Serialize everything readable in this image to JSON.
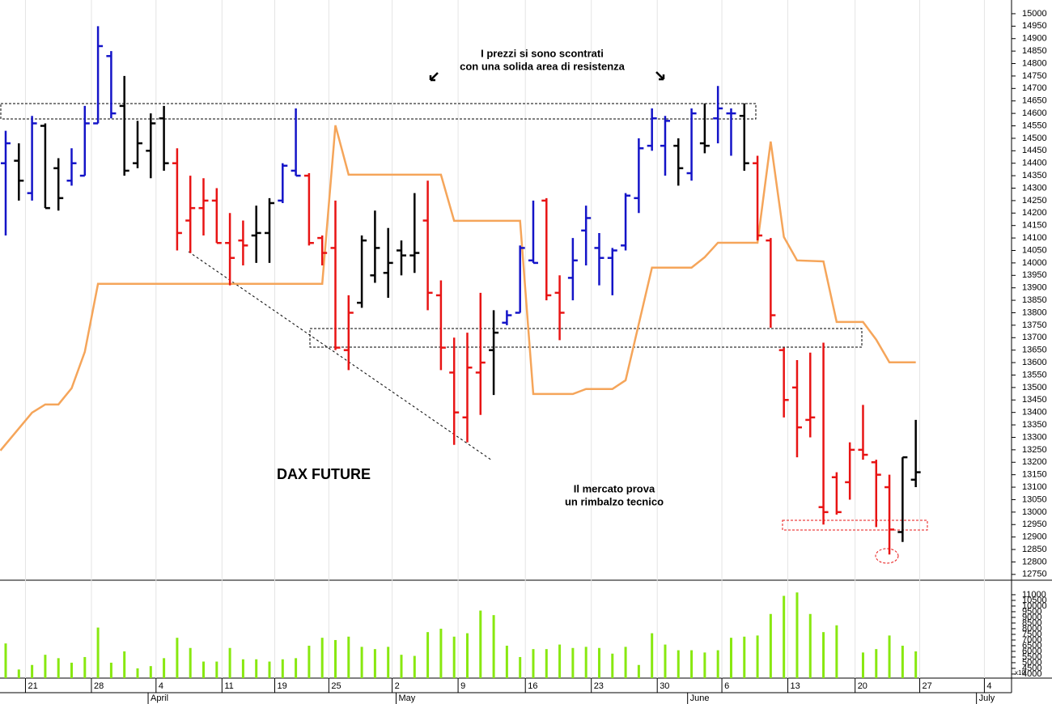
{
  "chart_data": {
    "type": "ohlc",
    "title": "DAX FUTURE",
    "annotations": [
      "I prezzi si sono scontrati",
      "con una solida area di resistenza",
      "Il mercato prova",
      "un rimbalzo tecnico"
    ],
    "volume_unit_label": "x10",
    "xlim": [
      -0.43,
      76.26
    ],
    "xticks": [
      {
        "value": 1.5,
        "label": "21"
      },
      {
        "value": 6.5,
        "label": "28"
      },
      {
        "value": 11.4,
        "label": "4"
      },
      {
        "value": 16.4,
        "label": "11"
      },
      {
        "value": 20.4,
        "label": "19"
      },
      {
        "value": 24.5,
        "label": "25"
      },
      {
        "value": 29.3,
        "label": "2"
      },
      {
        "value": 34.3,
        "label": "9"
      },
      {
        "value": 39.4,
        "label": "16"
      },
      {
        "value": 44.4,
        "label": "23"
      },
      {
        "value": 49.4,
        "label": "30"
      },
      {
        "value": 54.3,
        "label": "6"
      },
      {
        "value": 59.3,
        "label": "13"
      },
      {
        "value": 64.4,
        "label": "20"
      },
      {
        "value": 69.3,
        "label": "27"
      },
      {
        "value": 74.2,
        "label": "4"
      }
    ],
    "month_ticks": [
      {
        "value": 10.8,
        "label": "April"
      },
      {
        "value": 29.6,
        "label": "May"
      },
      {
        "value": 51.7,
        "label": "June"
      },
      {
        "value": 73.6,
        "label": "July"
      }
    ],
    "ylim": [
      12730,
      15055
    ],
    "yticks": [
      12750,
      12800,
      12850,
      12900,
      12950,
      13000,
      13050,
      13100,
      13150,
      13200,
      13250,
      13300,
      13350,
      13400,
      13450,
      13500,
      13550,
      13600,
      13650,
      13700,
      13750,
      13800,
      13850,
      13900,
      13950,
      14000,
      14050,
      14100,
      14150,
      14200,
      14250,
      14300,
      14350,
      14400,
      14450,
      14500,
      14550,
      14600,
      14650,
      14700,
      14750,
      14800,
      14850,
      14900,
      14950,
      15000
    ],
    "bars": {
      "x": [
        0,
        1,
        2,
        3,
        4,
        5,
        6,
        7,
        8,
        9,
        10,
        11,
        12,
        13,
        14,
        15,
        16,
        17,
        18,
        19,
        20,
        21,
        22,
        23,
        24,
        25,
        26,
        27,
        28,
        29,
        30,
        31,
        32,
        33,
        34,
        35,
        36,
        37,
        38,
        39,
        40,
        41,
        42,
        43,
        44,
        45,
        46,
        47,
        48,
        49,
        50,
        51,
        52,
        53,
        54,
        55,
        56,
        57,
        58,
        59,
        60,
        61,
        62,
        63,
        64,
        65,
        66,
        67,
        68,
        69
      ],
      "open": [
        14400,
        14410,
        14280,
        14550,
        14380,
        14330,
        14350,
        14560,
        14830,
        14630,
        14400,
        14450,
        14580,
        14400,
        14170,
        14220,
        14250,
        14080,
        14090,
        14110,
        14120,
        14250,
        14370,
        14350,
        14100,
        14060,
        13650,
        13840,
        13950,
        13960,
        14050,
        14030,
        14170,
        13870,
        13560,
        13380,
        13560,
        13650,
        13760,
        13800,
        14010,
        14250,
        13880,
        13940,
        14130,
        14060,
        14020,
        14070,
        14260,
        14470,
        14470,
        14470,
        14360,
        14480,
        14580,
        14600,
        14590,
        14400,
        14090,
        13650,
        13500,
        13370,
        13020,
        13140,
        13120,
        13250,
        13200,
        13100,
        12920,
        13130
      ],
      "high": [
        14530,
        14480,
        14590,
        14560,
        14420,
        14460,
        14630,
        14950,
        14850,
        14750,
        14570,
        14600,
        14630,
        14460,
        14350,
        14340,
        14300,
        14200,
        14170,
        14230,
        14260,
        14400,
        14620,
        14360,
        14110,
        14250,
        13870,
        14110,
        14210,
        14140,
        14090,
        14280,
        14330,
        13930,
        13700,
        13720,
        13880,
        13810,
        13810,
        14070,
        14250,
        14260,
        13950,
        14100,
        14230,
        14120,
        14060,
        14280,
        14500,
        14620,
        14590,
        14500,
        14620,
        14640,
        14710,
        14620,
        14640,
        14430,
        14100,
        13660,
        13610,
        13640,
        13680,
        13160,
        13280,
        13430,
        13210,
        13150,
        13220,
        13370
      ],
      "low": [
        14110,
        14250,
        14250,
        14220,
        14210,
        14310,
        14350,
        14560,
        14580,
        14350,
        14380,
        14340,
        14370,
        14050,
        14040,
        14110,
        14080,
        13910,
        13990,
        14000,
        14000,
        14240,
        14350,
        14070,
        13990,
        13650,
        13570,
        13820,
        13920,
        13860,
        13950,
        13960,
        13810,
        13570,
        13270,
        13280,
        13390,
        13470,
        13750,
        13800,
        14000,
        13850,
        13690,
        13850,
        13990,
        13910,
        13870,
        14050,
        14200,
        14450,
        14350,
        14310,
        14330,
        14440,
        14480,
        14430,
        14370,
        14090,
        13740,
        13380,
        13220,
        13300,
        12950,
        12990,
        13050,
        13210,
        12940,
        12830,
        12880,
        13100
      ],
      "close": [
        14480,
        14330,
        14560,
        14220,
        14260,
        14400,
        14560,
        14870,
        14600,
        14370,
        14480,
        14560,
        14400,
        14120,
        14220,
        14250,
        14080,
        14020,
        14070,
        14120,
        14240,
        14390,
        14350,
        14080,
        14040,
        13660,
        13800,
        14090,
        14060,
        14000,
        14030,
        14040,
        13880,
        13660,
        13400,
        13580,
        13600,
        13720,
        13790,
        14060,
        14000,
        13870,
        13800,
        14010,
        14180,
        14020,
        14050,
        14270,
        14460,
        14580,
        14570,
        14380,
        14600,
        14470,
        14620,
        14600,
        14400,
        14110,
        13790,
        13450,
        13340,
        13380,
        13000,
        13000,
        13250,
        13230,
        13150,
        12930,
        13220,
        13160
      ],
      "colors": [
        "#1414c8",
        "#000000",
        "#1414c8",
        "#000000",
        "#000000",
        "#1414c8",
        "#1414c8",
        "#1414c8",
        "#1414c8",
        "#000000",
        "#000000",
        "#000000",
        "#000000",
        "#e81414",
        "#e81414",
        "#e81414",
        "#e81414",
        "#e81414",
        "#e81414",
        "#000000",
        "#000000",
        "#1414c8",
        "#1414c8",
        "#e81414",
        "#e81414",
        "#e81414",
        "#e81414",
        "#000000",
        "#000000",
        "#000000",
        "#000000",
        "#000000",
        "#e81414",
        "#e81414",
        "#e81414",
        "#e81414",
        "#e81414",
        "#000000",
        "#1414c8",
        "#1414c8",
        "#1414c8",
        "#e81414",
        "#e81414",
        "#1414c8",
        "#1414c8",
        "#1414c8",
        "#1414c8",
        "#1414c8",
        "#1414c8",
        "#1414c8",
        "#1414c8",
        "#000000",
        "#1414c8",
        "#000000",
        "#1414c8",
        "#1414c8",
        "#000000",
        "#e81414",
        "#e81414",
        "#e81414",
        "#e81414",
        "#e81414",
        "#e81414",
        "#e81414",
        "#e81414",
        "#e81414",
        "#e81414",
        "#e81414",
        "#000000",
        "#000000"
      ]
    },
    "line": {
      "color": "#f5a55a",
      "x": [
        -0.4,
        2,
        3,
        4,
        5,
        6,
        7,
        24,
        25,
        26,
        33,
        34,
        39,
        40,
        43,
        44,
        46,
        47,
        49,
        52,
        53,
        54,
        57,
        58,
        59,
        60,
        62,
        63,
        65,
        66,
        67,
        69
      ],
      "values": [
        13247,
        13399,
        13432,
        13432,
        13497,
        13643,
        13916,
        13916,
        14552,
        14354,
        14354,
        14169,
        14169,
        13474,
        13474,
        13494,
        13494,
        13529,
        13981,
        13981,
        14023,
        14081,
        14081,
        14487,
        14104,
        14010,
        14006,
        13763,
        13763,
        13692,
        13601,
        13601
      ]
    },
    "volume": {
      "color": "#88e810",
      "ylim": [
        3640,
        12210
      ],
      "yticks": [
        4000,
        4500,
        5000,
        5500,
        6000,
        6500,
        7000,
        7500,
        8000,
        8500,
        9000,
        9500,
        10000,
        10500,
        11000
      ],
      "values": [
        6700,
        4400,
        4800,
        5700,
        5400,
        5000,
        5500,
        8100,
        5000,
        6000,
        4500,
        4700,
        5400,
        7200,
        6300,
        5100,
        5100,
        6300,
        5300,
        5300,
        5100,
        5300,
        5400,
        6500,
        7200,
        7000,
        7300,
        6400,
        6200,
        6400,
        5700,
        5600,
        7700,
        8000,
        7300,
        7600,
        9600,
        9200,
        6500,
        5500,
        6200,
        6200,
        6600,
        6300,
        6400,
        6300,
        5800,
        6400,
        4800,
        7600,
        6600,
        6100,
        6100,
        5900,
        6100,
        7200,
        7300,
        7400,
        9300,
        10900,
        11200,
        9300,
        7700,
        8300,
        null,
        5900,
        6200,
        7400,
        6500,
        6000
      ]
    }
  }
}
